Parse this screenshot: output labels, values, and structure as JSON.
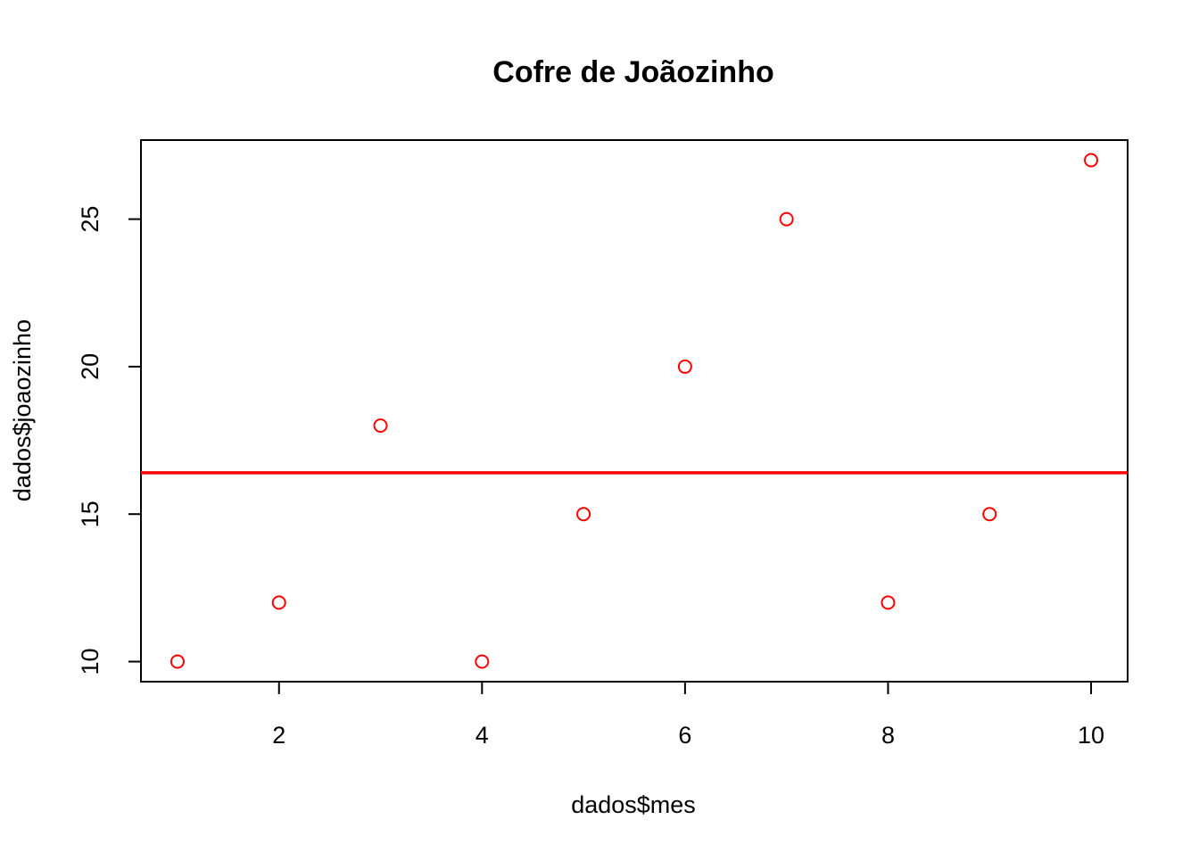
{
  "chart_data": {
    "type": "scatter",
    "title": "Cofre de Joãozinho",
    "xlabel": "dados$mes",
    "ylabel": "dados$joaozinho",
    "x": [
      1,
      2,
      3,
      4,
      5,
      6,
      7,
      8,
      9,
      10
    ],
    "y": [
      10,
      12,
      18,
      10,
      15,
      20,
      25,
      12,
      15,
      27
    ],
    "xlim": [
      0.64,
      10.36
    ],
    "ylim": [
      9.32,
      27.68
    ],
    "xticks": [
      2,
      4,
      6,
      8,
      10
    ],
    "yticks": [
      10,
      15,
      20,
      25
    ],
    "hline": 16.4,
    "marker": "open-circle",
    "point_color": "#ff0000",
    "line_color": "#ff0000",
    "grid": false
  }
}
